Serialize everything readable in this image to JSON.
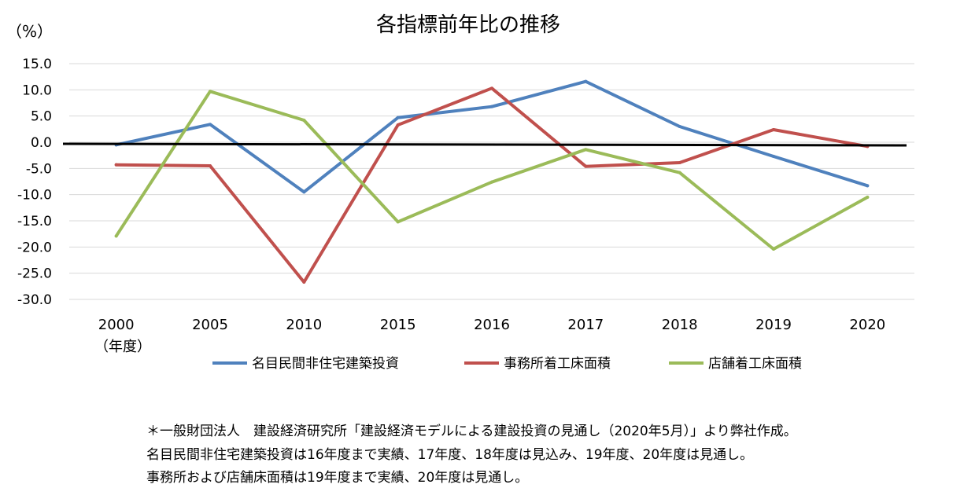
{
  "chart_data": {
    "type": "line",
    "title": "各指標前年比の推移",
    "y_unit": "（%）",
    "x_axis_note": "（年度）",
    "categories": [
      "2000",
      "2005",
      "2010",
      "2015",
      "2016",
      "2017",
      "2018",
      "2019",
      "2020"
    ],
    "ylim": [
      -30,
      15
    ],
    "y_ticks": [
      "15.0",
      "10.0",
      "5.0",
      "0.0",
      "-5.0",
      "-10.0",
      "-15.0",
      "-20.0",
      "-25.0",
      "-30.0"
    ],
    "grid": true,
    "legend_position": "bottom",
    "series": [
      {
        "name": "名目民間非住宅建築投資",
        "color": "#4f81bd",
        "values": [
          -0.5,
          3.4,
          -9.5,
          4.7,
          6.8,
          11.6,
          3.0,
          -2.7,
          -8.3
        ]
      },
      {
        "name": "事務所着工床面積",
        "color": "#c0504d",
        "values": [
          -4.3,
          -4.5,
          -26.7,
          3.3,
          10.3,
          -4.6,
          -3.9,
          2.4,
          -0.8
        ]
      },
      {
        "name": "店舗着工床面積",
        "color": "#9bbb59",
        "values": [
          -17.9,
          9.7,
          4.2,
          -15.2,
          -7.6,
          -1.4,
          -5.8,
          -20.4,
          -10.5
        ]
      }
    ]
  },
  "notes": [
    "＊一般財団法人　建設経済研究所「建設経済モデルによる建設投資の見通し（2020年5月）」より弊社作成。",
    "名目民間非住宅建築投資は16年度まで実績、17年度、18年度は見込み、19年度、20年度は見通し。",
    "事務所および店舗床面積は19年度まで実績、20年度は見通し。"
  ]
}
